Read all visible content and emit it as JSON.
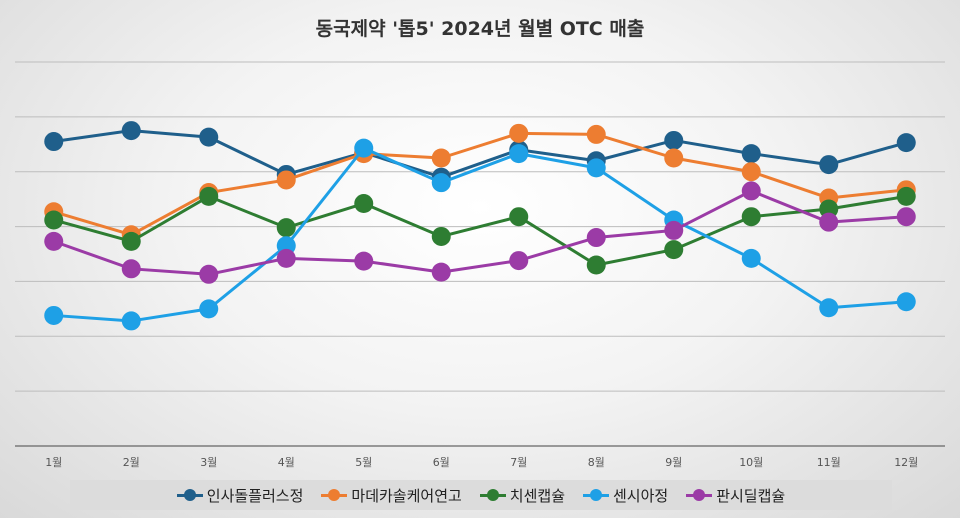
{
  "chart_data": {
    "type": "line",
    "title": "동국제약 '톱5' 2024년 월별 OTC 매출",
    "categories": [
      "1월",
      "2월",
      "3월",
      "4월",
      "5월",
      "6월",
      "7월",
      "8월",
      "9월",
      "10월",
      "11월",
      "12월"
    ],
    "ylim": [
      0,
      70
    ],
    "grid": true,
    "legend_position": "bottom",
    "series": [
      {
        "name": "인사돌플러스정",
        "color": "#1f5f8b",
        "values": [
          55.5,
          57.5,
          56.3,
          49.5,
          53.5,
          49,
          54,
          52,
          55.7,
          53.3,
          51.3,
          55.3
        ]
      },
      {
        "name": "마데카솔케어연고",
        "color": "#ed7d31",
        "values": [
          42.7,
          38.5,
          46.2,
          48.5,
          53.3,
          52.5,
          57,
          56.8,
          52.5,
          50,
          45.2,
          46.7
        ]
      },
      {
        "name": "치센캡슐",
        "color": "#2e7d32",
        "values": [
          41.2,
          37.3,
          45.5,
          39.8,
          44.2,
          38.2,
          41.8,
          33,
          35.8,
          41.8,
          43.2,
          45.5
        ]
      },
      {
        "name": "센시아정",
        "color": "#1ea0e6",
        "values": [
          23.8,
          22.8,
          25,
          36.5,
          54.3,
          48,
          53.3,
          50.7,
          41.2,
          34.2,
          25.2,
          26.3
        ]
      },
      {
        "name": "판시딜캡슐",
        "color": "#9b3ba6",
        "values": [
          37.3,
          32.3,
          31.3,
          34.2,
          33.7,
          31.7,
          33.8,
          38,
          39.3,
          46.5,
          40.8,
          41.8
        ]
      }
    ]
  }
}
